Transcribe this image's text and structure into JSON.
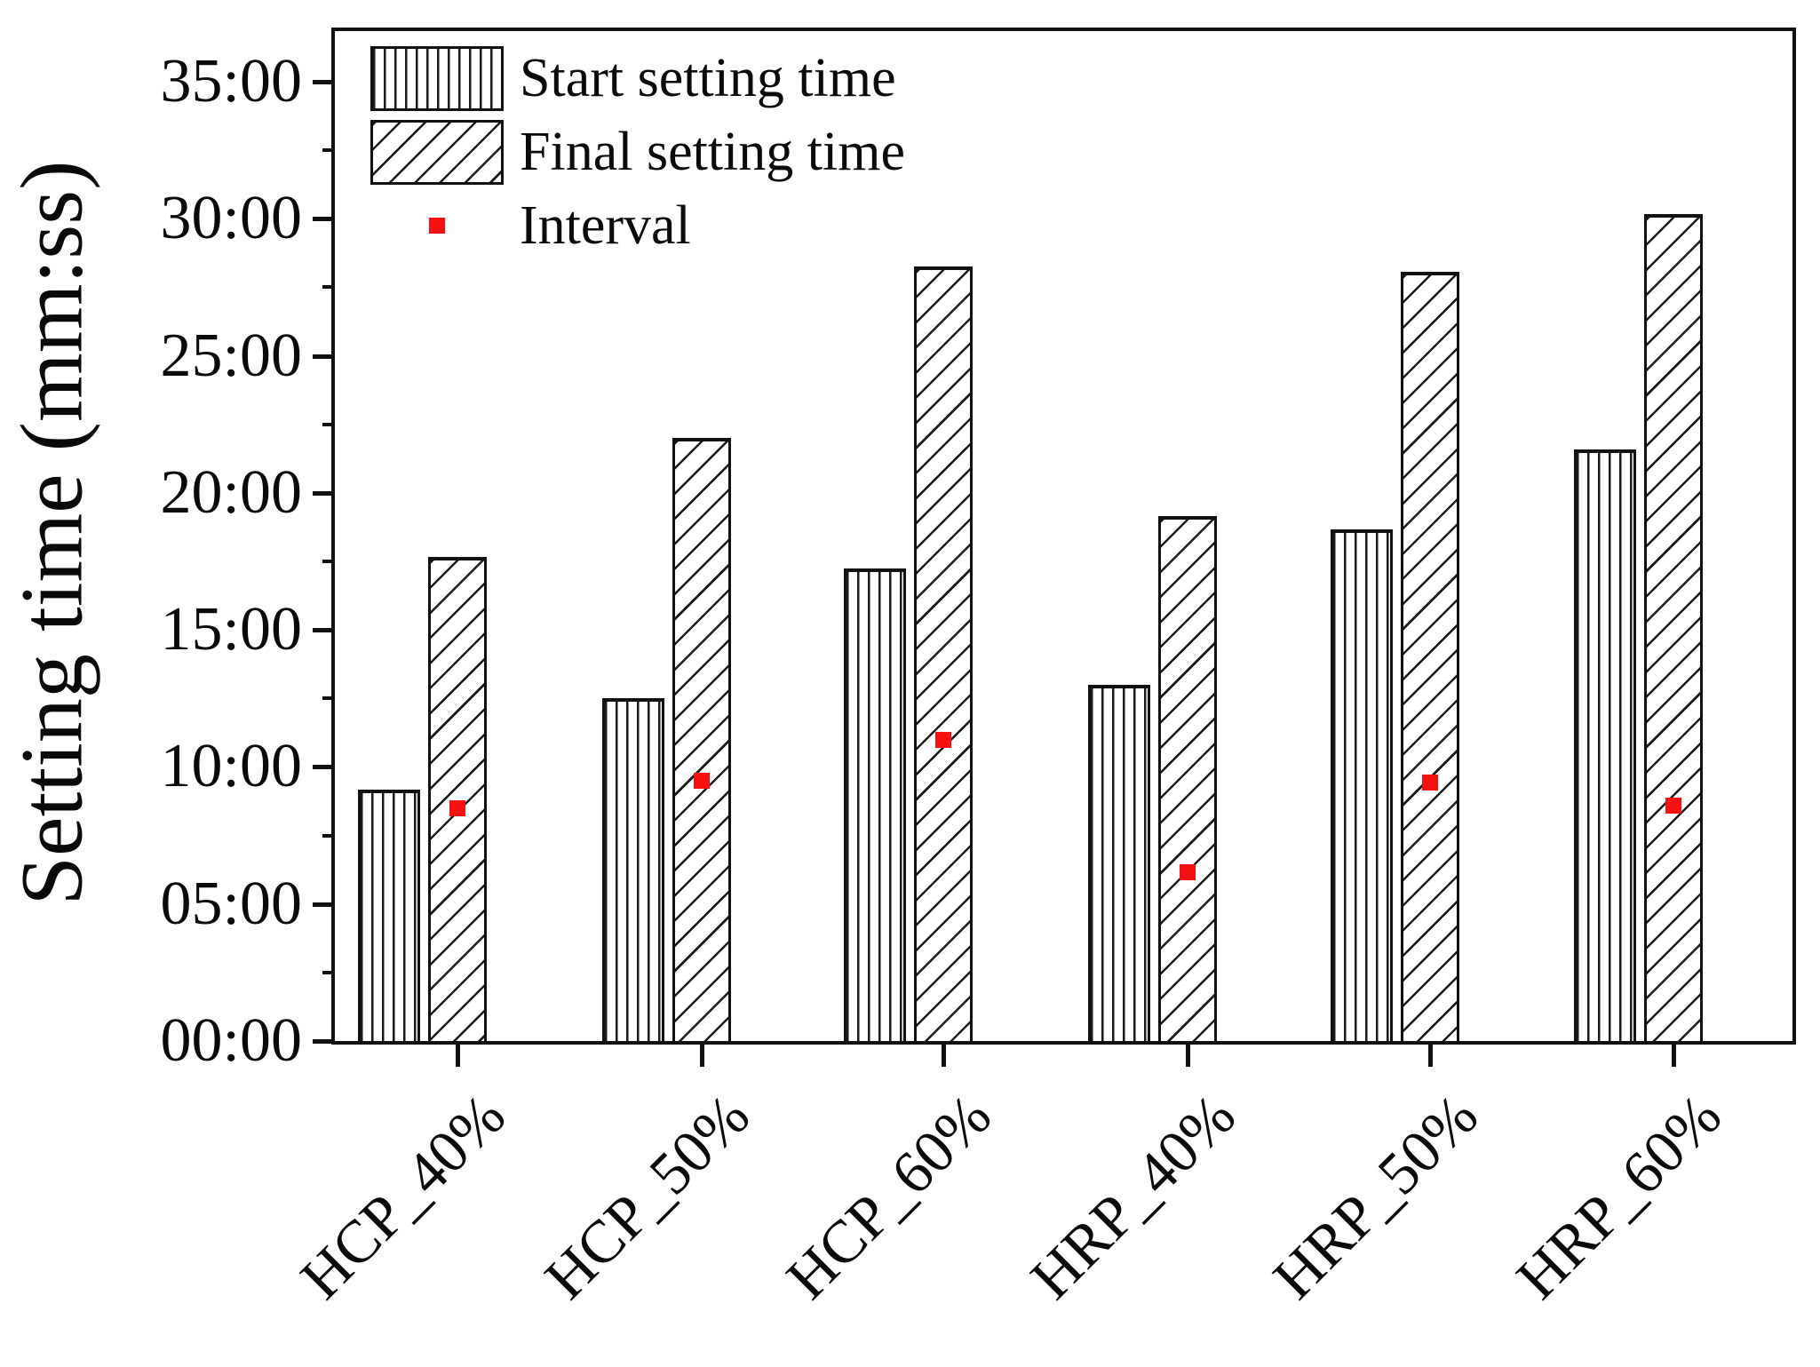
{
  "figure": {
    "background": "#ffffff",
    "frame_color": "#111111",
    "accent_red": "#f51111"
  },
  "y_axis": {
    "title": "Setting time (mm:ss)",
    "tick_labels": [
      "00:00",
      "05:00",
      "10:00",
      "15:00",
      "20:00",
      "25:00",
      "30:00",
      "35:00"
    ]
  },
  "legend": {
    "items": [
      {
        "label": "Start setting time",
        "swatch": "vertical-hatch-swatch"
      },
      {
        "label": "Final setting time",
        "swatch": "diagonal-hatch-swatch"
      },
      {
        "label": "Interval",
        "swatch": "red-square-marker",
        "color": "#f51111"
      }
    ]
  },
  "chart_data": {
    "type": "bar",
    "categories": [
      "HCP_40%",
      "HCP_50%",
      "HCP_60%",
      "HRP_40%",
      "HRP_50%",
      "HRP_60%"
    ],
    "series": [
      {
        "name": "Start setting time",
        "hatch": "vertical",
        "values_minutes": [
          9.17,
          12.5,
          17.25,
          13.0,
          18.67,
          21.58
        ],
        "values_mmss": [
          "09:10",
          "12:30",
          "17:15",
          "13:00",
          "18:40",
          "21:35"
        ]
      },
      {
        "name": "Final setting time",
        "hatch": "diagonal",
        "values_minutes": [
          17.67,
          22.0,
          28.25,
          19.17,
          28.08,
          30.17
        ],
        "values_mmss": [
          "17:40",
          "22:00",
          "28:15",
          "19:10",
          "28:05",
          "30:10"
        ]
      }
    ],
    "markers": {
      "name": "Interval",
      "color": "#f51111",
      "values_minutes": [
        8.5,
        9.5,
        11.0,
        6.17,
        9.42,
        8.58
      ],
      "values_mmss": [
        "08:30",
        "09:30",
        "11:00",
        "06:10",
        "09:25",
        "08:35"
      ]
    },
    "title": "",
    "xlabel": "",
    "ylabel": "Setting time (mm:ss)",
    "ylim": [
      0,
      36.85
    ],
    "ytick_step_minutes": 5,
    "ytick_minor_step_minutes": 2.5,
    "ytick_format": "mm:ss",
    "grid": false,
    "legend_position": "top-left"
  }
}
